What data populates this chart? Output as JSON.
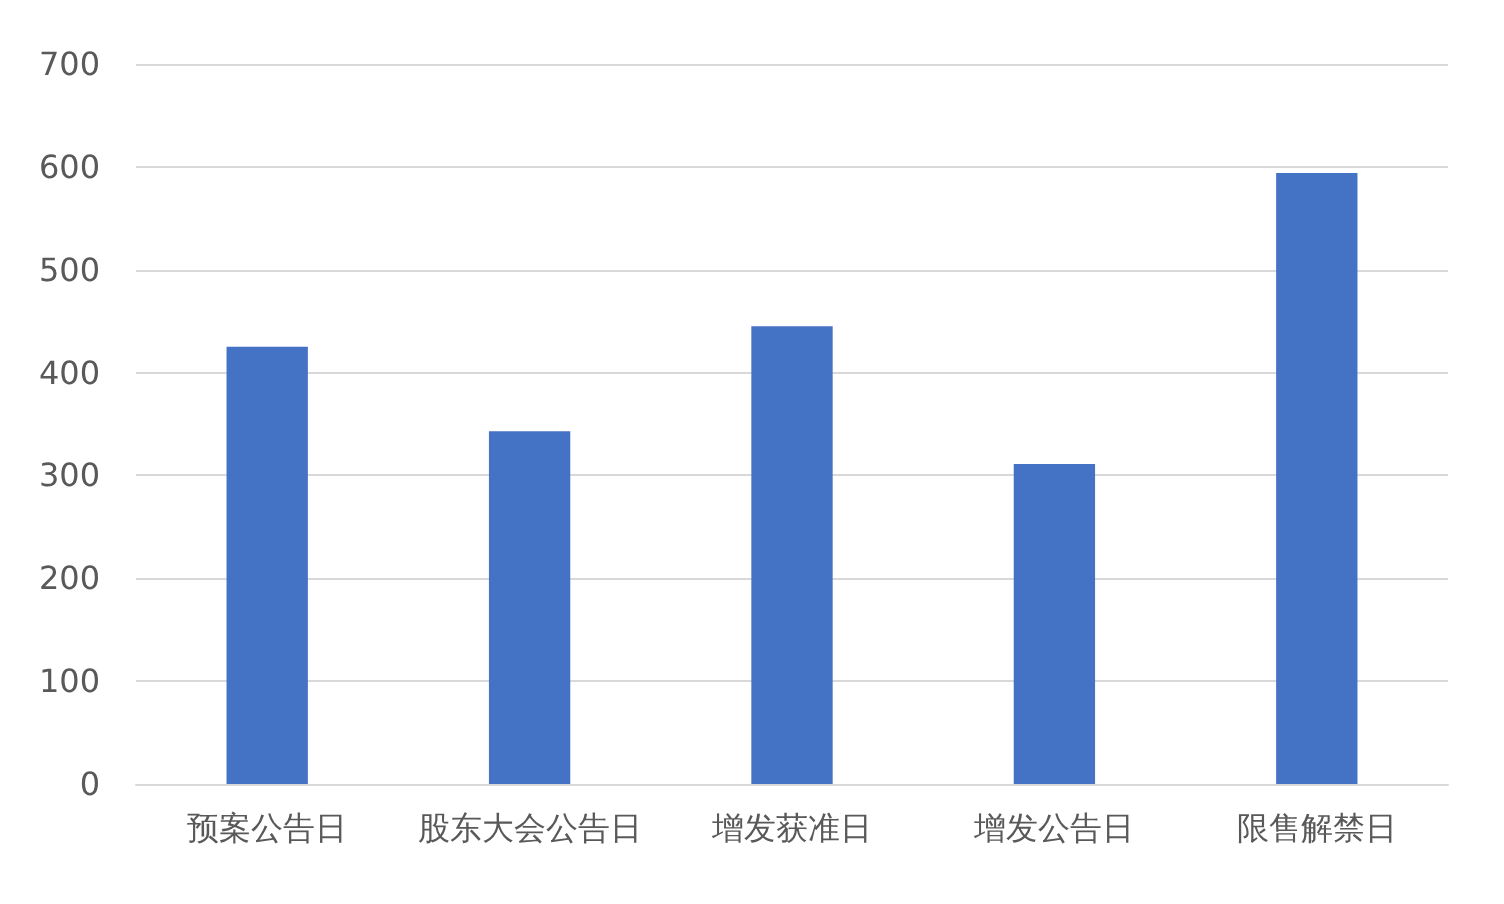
{
  "chart_data": {
    "type": "bar",
    "categories": [
      "预案公告日",
      "股东大会公告日",
      "增发获准日",
      "增发公告日",
      "限售解禁日"
    ],
    "values": [
      425,
      343,
      445,
      311,
      594
    ],
    "color": "#4472c4",
    "ylim": [
      0,
      700
    ],
    "yticks": [
      0,
      100,
      200,
      300,
      400,
      500,
      600,
      700
    ],
    "grid": "y"
  }
}
